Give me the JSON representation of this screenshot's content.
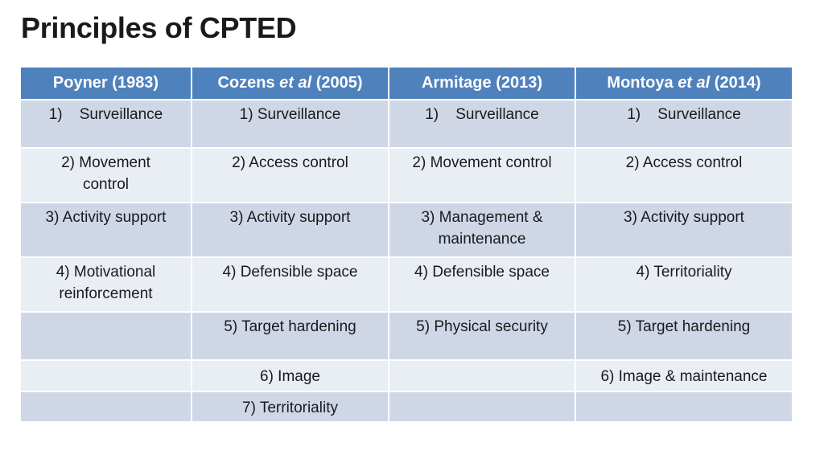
{
  "slide": {
    "title": "Principles of CPTED"
  },
  "table": {
    "headers": [
      {
        "name": "Poyner",
        "etal": "",
        "year": "(1983)"
      },
      {
        "name": "Cozens",
        "etal": "et al",
        "year": "(2005)"
      },
      {
        "name": "Armitage",
        "etal": "",
        "year": "(2013)"
      },
      {
        "name": "Montoya",
        "etal": "et al",
        "year": "(2014)"
      }
    ],
    "rows": [
      [
        "1)    Surveillance",
        "1) Surveillance",
        "1)    Surveillance",
        "1)    Surveillance"
      ],
      [
        "2) Movement control",
        "2) Access control",
        "2) Movement control",
        "2) Access control"
      ],
      [
        "3) Activity support",
        "3) Activity support",
        "3) Management & maintenance",
        "3) Activity support"
      ],
      [
        "4) Motivational reinforcement",
        "4) Defensible space",
        "4) Defensible space",
        "4) Territoriality"
      ],
      [
        "",
        "5) Target hardening",
        "5) Physical security",
        "5) Target hardening"
      ],
      [
        "",
        "6) Image",
        "",
        "6) Image & maintenance"
      ],
      [
        "",
        "7) Territoriality",
        "",
        ""
      ]
    ]
  }
}
